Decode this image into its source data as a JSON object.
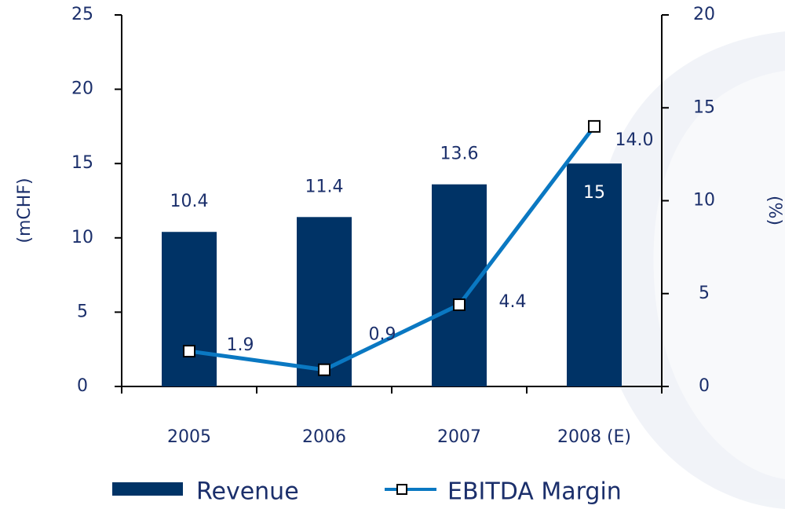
{
  "chart_data": {
    "type": "bar",
    "categories": [
      "2005",
      "2006",
      "2007",
      "2008 (E)"
    ],
    "series": [
      {
        "name": "Revenue",
        "type": "bar",
        "color": "#003366",
        "values": [
          10.4,
          11.4,
          13.6,
          15
        ],
        "value_labels": [
          "10.4",
          "11.4",
          "13.6",
          "15"
        ]
      },
      {
        "name": "EBITDA Margin",
        "type": "line",
        "axis": "y2",
        "color": "#0a78c2",
        "values": [
          1.9,
          0.9,
          4.4,
          14.0
        ],
        "value_labels": [
          "1.9",
          "0.9",
          "4.4",
          "14.0"
        ]
      }
    ],
    "ylabel": "(mCHF)",
    "y2label": "(%)",
    "ylim": [
      0,
      25
    ],
    "yticks": [
      0,
      5,
      10,
      15,
      20,
      25
    ],
    "y2lim": [
      0,
      20
    ],
    "y2ticks": [
      0,
      5,
      10,
      15,
      20
    ],
    "legend": "bottom"
  }
}
